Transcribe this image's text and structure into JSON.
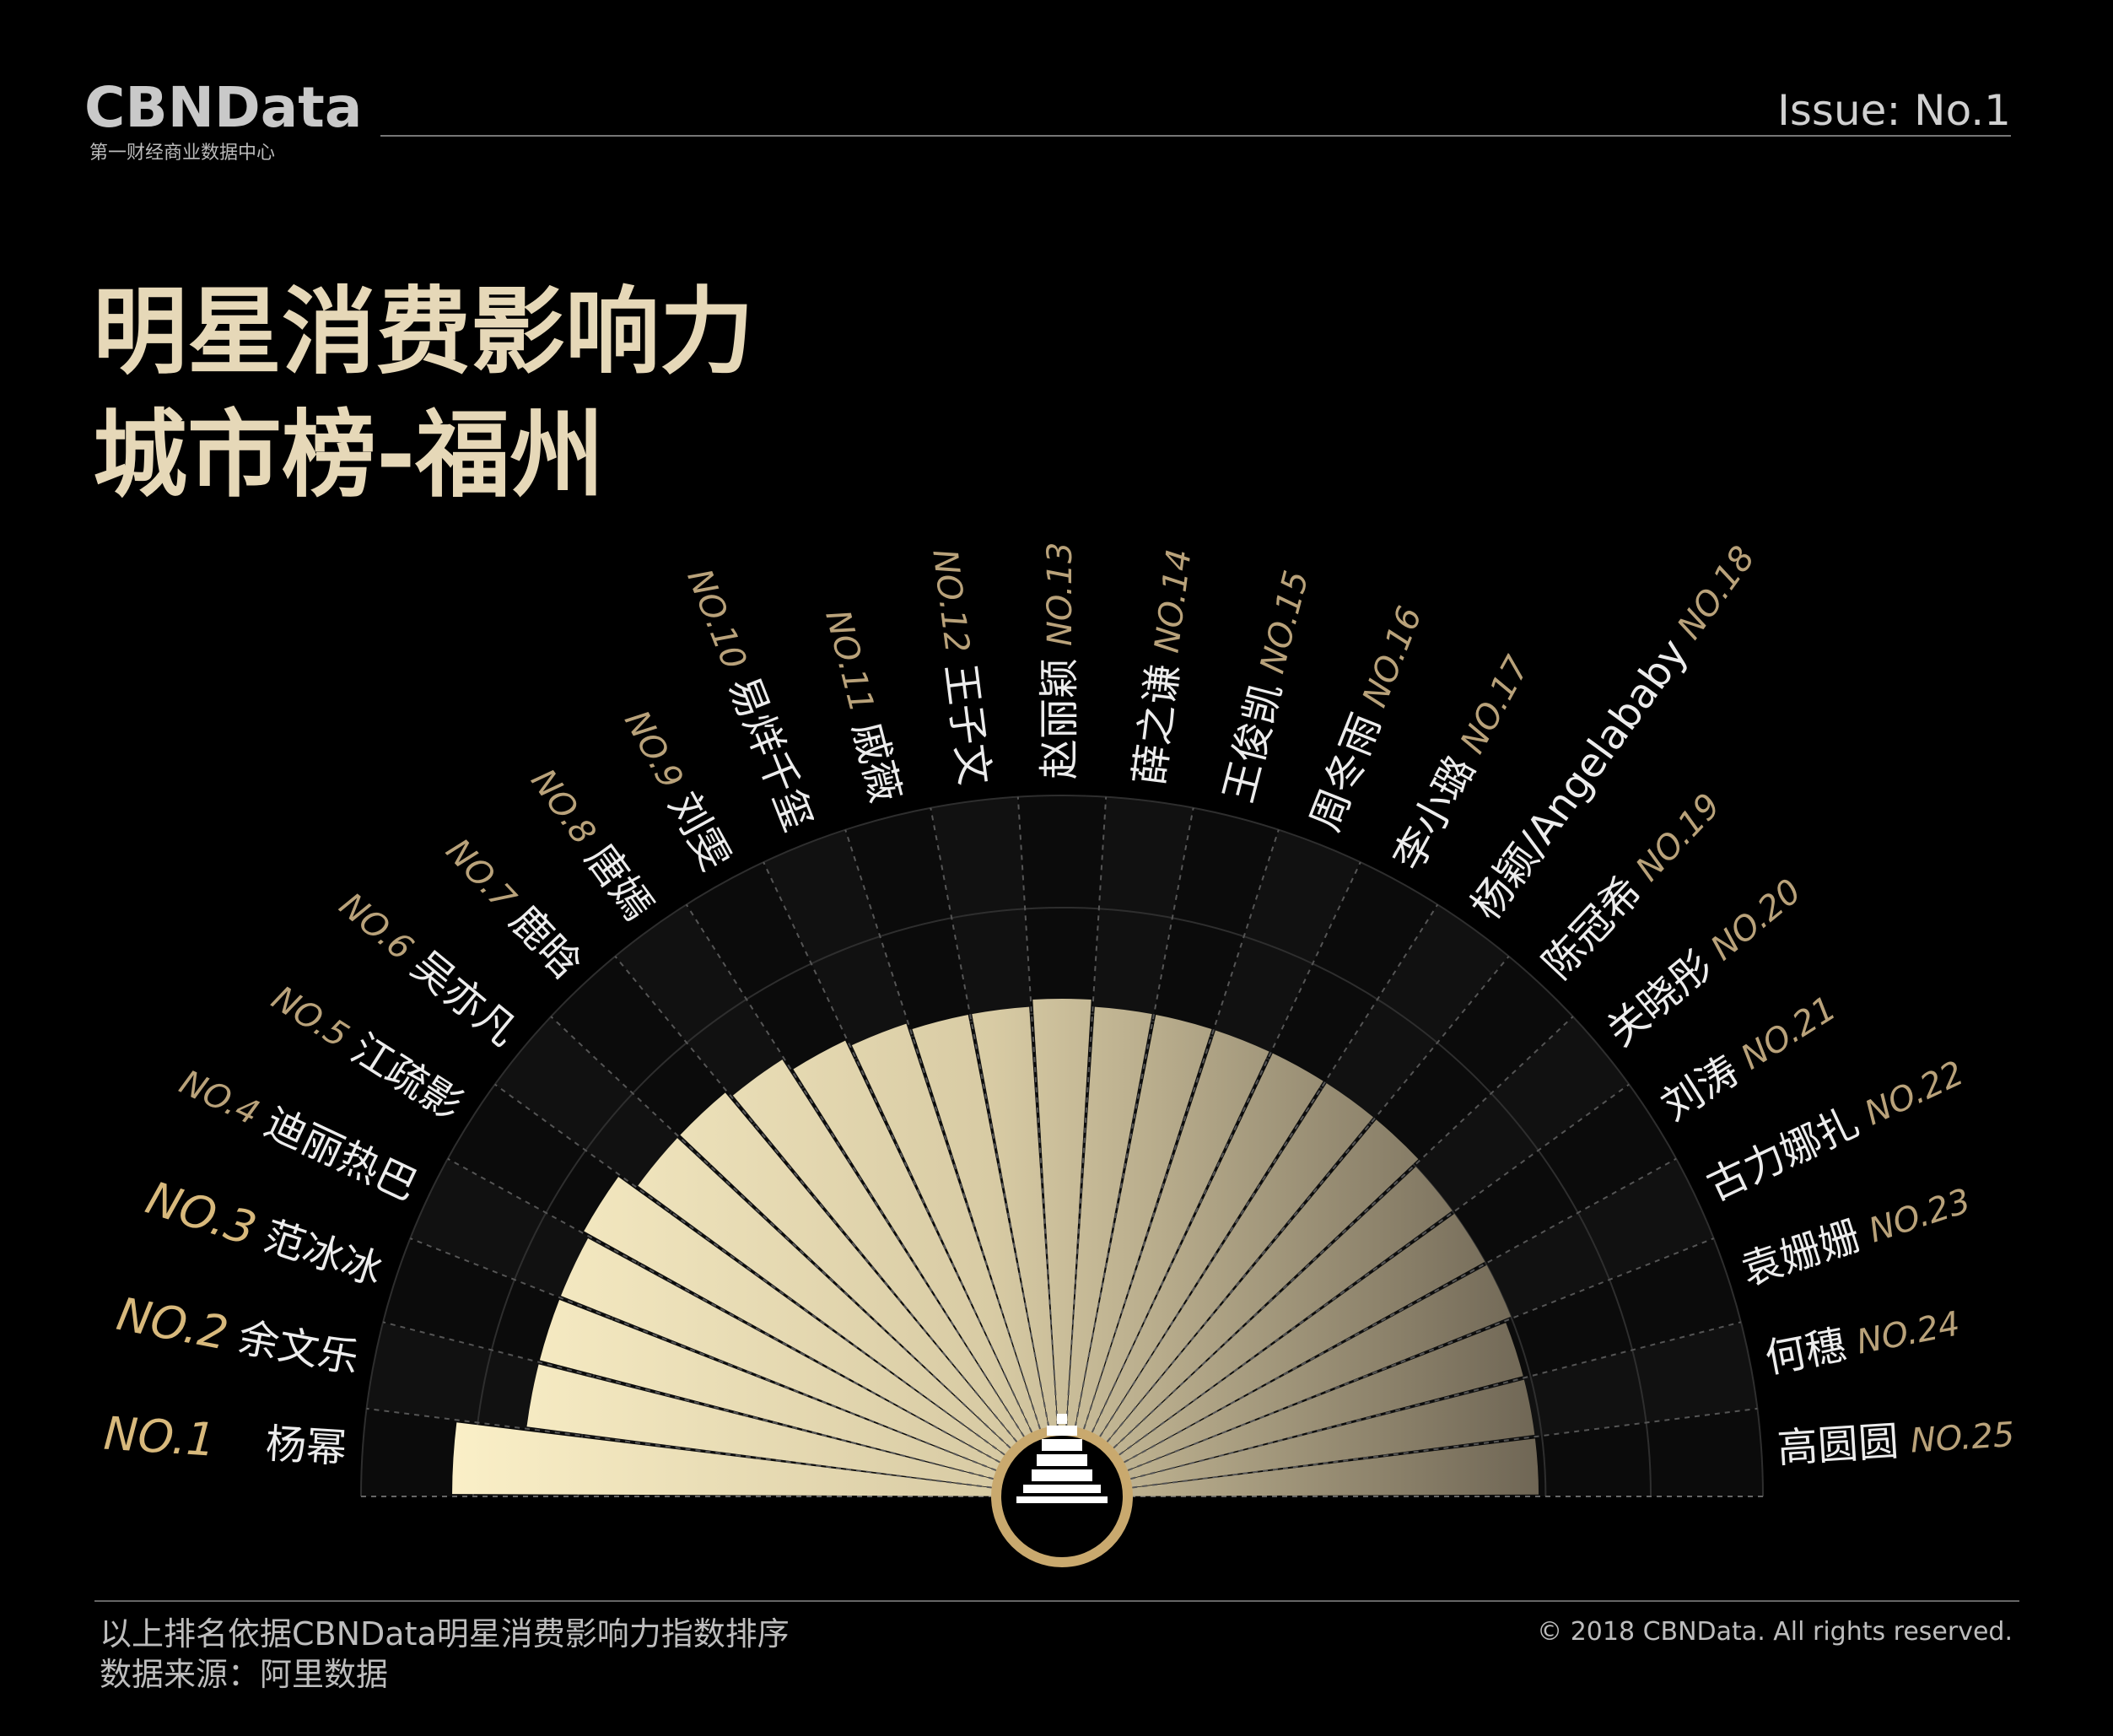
{
  "header": {
    "logo": "CBNData",
    "logo_subtitle": "第一财经商业数据中心",
    "issue": "Issue: No.1"
  },
  "chart_data": {
    "type": "radial_bar",
    "title": [
      "明星消费影响力",
      "城市榜-福州"
    ],
    "ranks": [
      "NO.1",
      "NO.2",
      "NO.3",
      "NO.4",
      "NO.5",
      "NO.6",
      "NO.7",
      "NO.8",
      "NO.9",
      "NO.10",
      "NO.11",
      "NO.12",
      "NO.13",
      "NO.14",
      "NO.15",
      "NO.16",
      "NO.17",
      "NO.18",
      "NO.19",
      "NO.20",
      "NO.21",
      "NO.22",
      "NO.23",
      "NO.24",
      "NO.25"
    ],
    "categories": [
      "杨幂",
      "余文乐",
      "范冰冰",
      "迪丽热巴",
      "江疏影",
      "吴亦凡",
      "鹿晗",
      "唐嫣",
      "刘雯",
      "易烊千玺",
      "戚薇",
      "王子文",
      "赵丽颖",
      "薛之谦",
      "王俊凯",
      "周冬雨",
      "李小璐",
      "杨颖/Angelababy",
      "陈冠希",
      "关晓彤",
      "刘涛",
      "古力娜扎",
      "袁姗姗",
      "何穗",
      "高圆圆"
    ],
    "values": [
      87,
      77,
      77,
      77,
      78,
      75,
      75,
      74,
      72,
      71,
      70,
      70,
      71,
      70,
      70,
      70,
      70,
      70,
      70,
      69,
      69,
      69,
      68,
      68,
      68
    ],
    "ylim": [
      0,
      100
    ]
  },
  "footer": {
    "note": "以上排名依据CBNData明星消费影响力指数排序",
    "source": "数据来源：阿里数据",
    "copyright": "© 2018 CBNData. All rights reserved."
  }
}
